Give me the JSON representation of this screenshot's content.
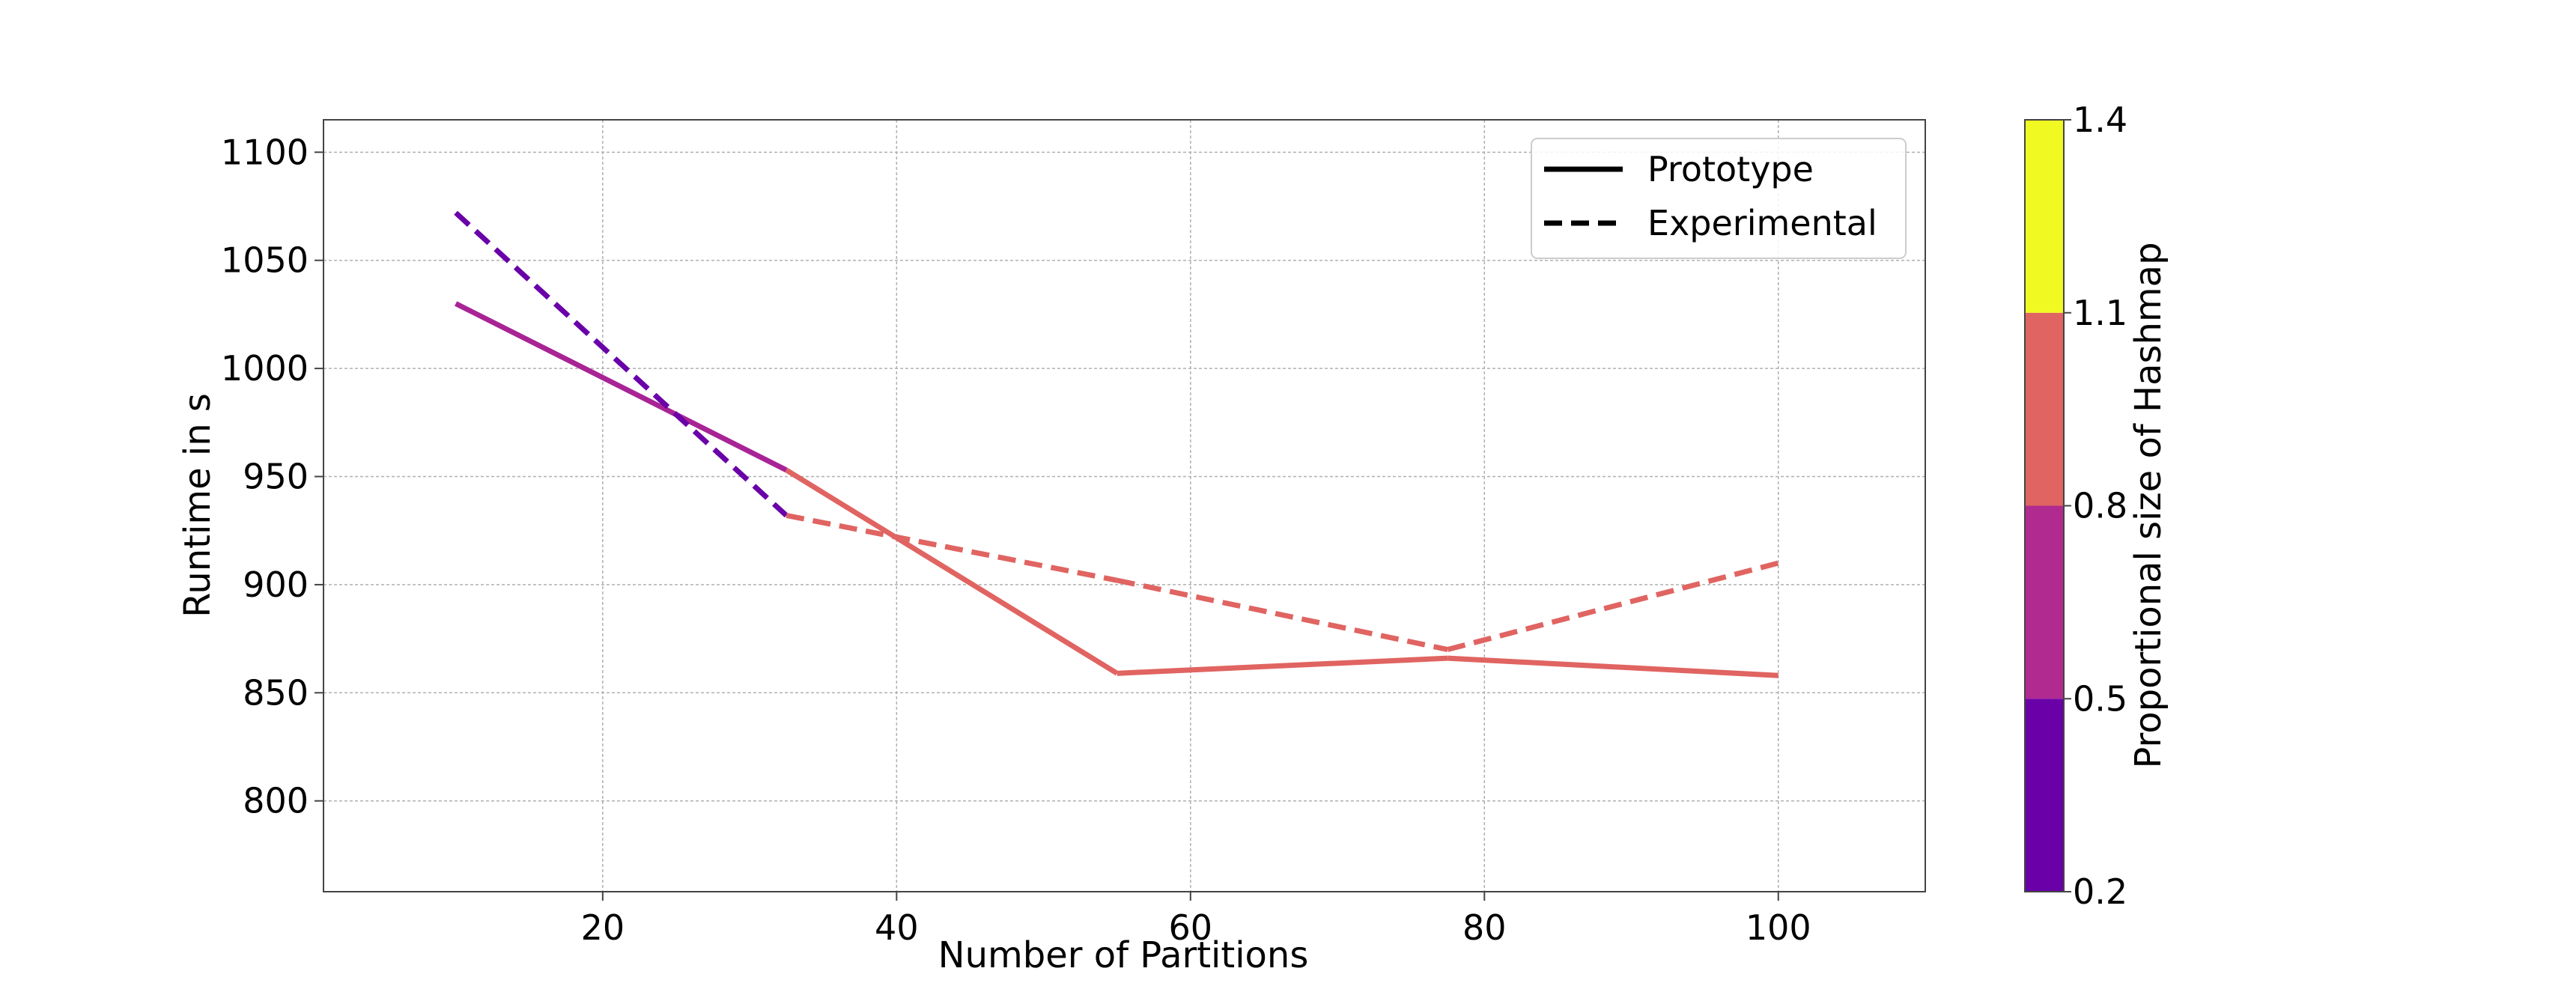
{
  "chart_data": {
    "type": "line",
    "xlabel": "Number of Partitions",
    "ylabel": "Runtime in s",
    "xlim": [
      1,
      110
    ],
    "ylim": [
      758,
      1115
    ],
    "xticks": [
      20,
      40,
      60,
      80,
      100
    ],
    "yticks": [
      800,
      850,
      900,
      950,
      1000,
      1050,
      1100
    ],
    "grid": true,
    "legend_position": "top-right",
    "legend": [
      {
        "label": "Prototype",
        "style": "solid"
      },
      {
        "label": "Experimental",
        "style": "dashed"
      }
    ],
    "series": [
      {
        "name": "Prototype",
        "style": "solid",
        "x": [
          10,
          32.5,
          55,
          77.5,
          100
        ],
        "y": [
          1030,
          953,
          859,
          866,
          858
        ],
        "segment_colors": [
          "#a82496",
          "#e06461",
          "#e06461",
          "#e06461"
        ]
      },
      {
        "name": "Experimental",
        "style": "dashed",
        "x": [
          10,
          32.5,
          55,
          77.5,
          100
        ],
        "y": [
          1072,
          932,
          902,
          870,
          910
        ],
        "segment_colors": [
          "#6a00a8",
          "#e06461",
          "#e06461",
          "#e06461"
        ]
      }
    ],
    "colorbar": {
      "label": "Proportional size of Hashmap",
      "range": [
        0.2,
        1.4
      ],
      "ticks": [
        "0.2",
        "0.5",
        "0.8",
        "1.1",
        "1.4"
      ],
      "bands": [
        {
          "from": 0.2,
          "to": 0.5,
          "color": "#6a00a8"
        },
        {
          "from": 0.5,
          "to": 0.8,
          "color": "#b12a90"
        },
        {
          "from": 0.8,
          "to": 1.1,
          "color": "#e06461"
        },
        {
          "from": 1.1,
          "to": 1.4,
          "color": "#f0f921"
        }
      ]
    }
  }
}
